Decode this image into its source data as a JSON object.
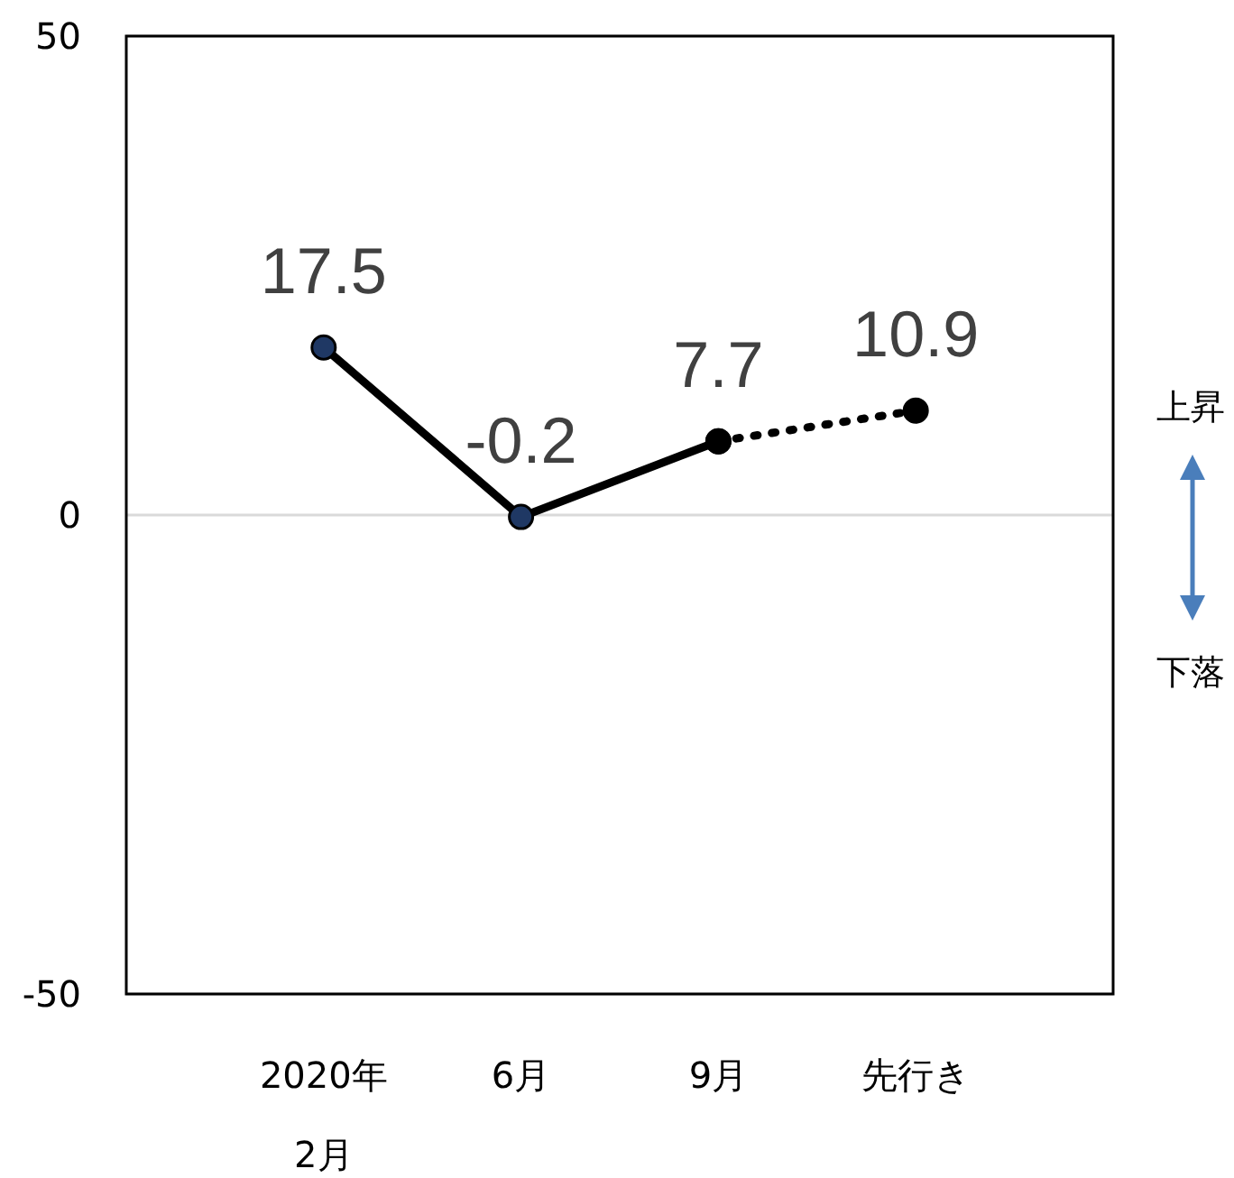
{
  "chart_data": {
    "type": "line",
    "categories": [
      "2020年\n2月",
      "6月",
      "9月",
      "先行き"
    ],
    "series": [
      {
        "color": "#000000",
        "values": [
          17.5,
          -0.2,
          7.7,
          null
        ],
        "value_labels": [
          "17.5",
          "-0.2",
          "7.7",
          null
        ],
        "marker": "circle",
        "line_style": "solid"
      },
      {
        "color": "#000000",
        "values": [
          null,
          null,
          7.7,
          10.9
        ],
        "value_labels": [
          null,
          null,
          null,
          "10.9"
        ],
        "marker": "circle",
        "line_style": "dotted"
      }
    ],
    "ylim": [
      -50,
      50
    ],
    "yticks": [
      -50,
      0,
      50
    ],
    "grid": "y",
    "annotations": [
      "上昇",
      "下落"
    ]
  }
}
